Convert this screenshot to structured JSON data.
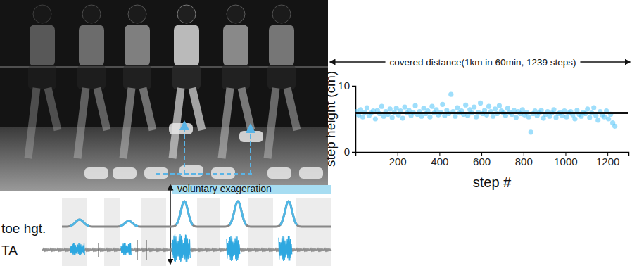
{
  "chart_data": {
    "type": "scatter",
    "title": "covered distance(1km in 60min, 1239 steps)",
    "x_label": "step #",
    "y_label": "step height (cm)",
    "color": "#4fc3f7",
    "marker": "circle",
    "mean": 5.9,
    "xlim": [
      0,
      1300
    ],
    "xticks": [
      200,
      400,
      600,
      800,
      1000,
      1200
    ],
    "ylim": [
      0,
      10
    ],
    "yticks": [
      0,
      10
    ],
    "x": [
      5,
      15,
      25,
      35,
      45,
      55,
      65,
      75,
      85,
      95,
      105,
      115,
      125,
      135,
      145,
      155,
      165,
      175,
      185,
      195,
      205,
      215,
      225,
      235,
      245,
      255,
      265,
      275,
      285,
      295,
      305,
      315,
      325,
      335,
      345,
      355,
      365,
      375,
      385,
      395,
      405,
      415,
      425,
      435,
      445,
      455,
      465,
      475,
      485,
      495,
      505,
      515,
      525,
      535,
      545,
      555,
      565,
      575,
      585,
      595,
      605,
      615,
      625,
      635,
      645,
      655,
      665,
      675,
      685,
      695,
      705,
      715,
      725,
      735,
      745,
      755,
      765,
      775,
      785,
      795,
      805,
      815,
      825,
      835,
      845,
      855,
      865,
      875,
      885,
      895,
      905,
      915,
      925,
      935,
      945,
      955,
      965,
      975,
      985,
      995,
      1005,
      1015,
      1025,
      1035,
      1045,
      1055,
      1065,
      1075,
      1085,
      1095,
      1105,
      1115,
      1125,
      1135,
      1145,
      1155,
      1165,
      1175,
      1185,
      1195,
      1205,
      1215,
      1225,
      1235
    ],
    "values": [
      6.1,
      5.6,
      6.4,
      5.3,
      6.0,
      6.7,
      5.5,
      5.9,
      6.2,
      5.0,
      6.3,
      5.8,
      6.9,
      5.4,
      6.1,
      5.7,
      6.5,
      5.2,
      6.0,
      6.6,
      5.6,
      6.2,
      5.1,
      6.8,
      5.9,
      6.3,
      5.5,
      6.0,
      7.0,
      5.7,
      6.1,
      5.4,
      6.6,
      5.8,
      6.2,
      5.3,
      6.9,
      5.9,
      6.4,
      5.6,
      6.0,
      7.2,
      5.5,
      6.3,
      5.8,
      8.7,
      6.1,
      5.4,
      6.7,
      5.9,
      6.2,
      5.7,
      7.1,
      5.5,
      6.4,
      5.9,
      6.8,
      5.3,
      6.0,
      7.4,
      5.8,
      6.3,
      5.6,
      6.9,
      6.1,
      5.4,
      6.5,
      5.8,
      7.0,
      6.2,
      5.9,
      5.5,
      6.6,
      6.0,
      5.7,
      6.3,
      5.2,
      6.1,
      5.8,
      6.4,
      5.6,
      6.0,
      5.3,
      3.0,
      5.8,
      6.2,
      5.5,
      5.9,
      6.3,
      5.1,
      5.7,
      6.1,
      5.4,
      5.9,
      6.4,
      5.2,
      5.8,
      6.0,
      5.5,
      6.2,
      5.3,
      5.9,
      6.1,
      5.6,
      5.0,
      6.3,
      5.7,
      5.4,
      6.0,
      5.8,
      6.5,
      5.2,
      5.9,
      6.7,
      5.5,
      4.8,
      6.1,
      5.6,
      5.3,
      6.2,
      5.0,
      5.7,
      4.4,
      3.9
    ]
  },
  "diagram": {
    "annotation": "voluntary exageration",
    "traces": [
      {
        "label": "toe hgt."
      },
      {
        "label": "TA"
      }
    ]
  }
}
